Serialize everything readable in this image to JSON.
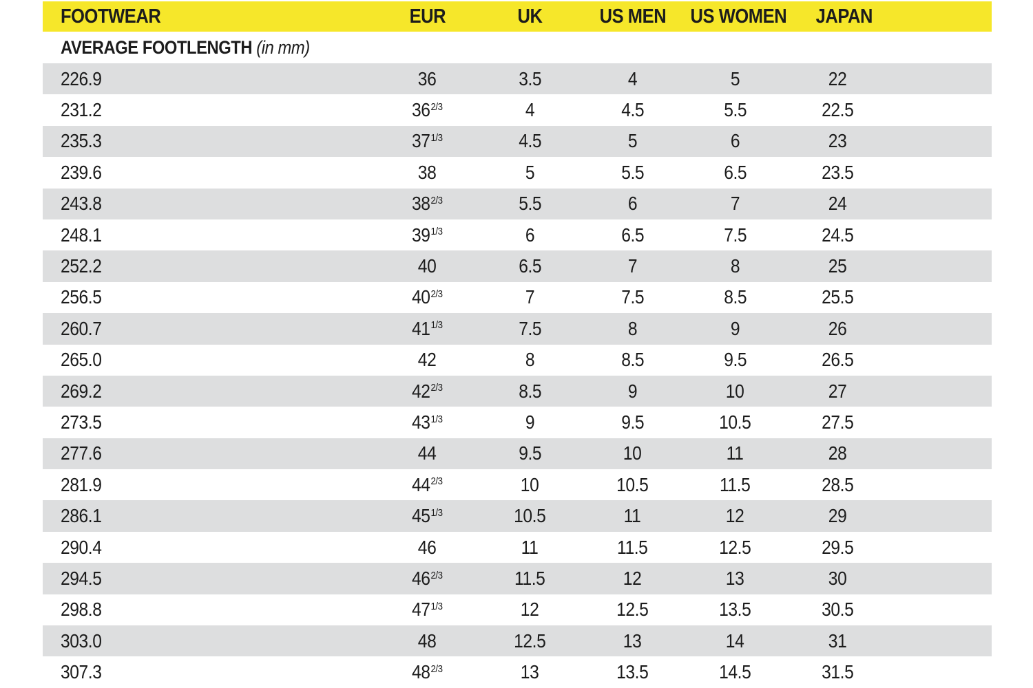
{
  "colors": {
    "header_bg": "#f6e72a",
    "row_alt_bg": "#dddedf",
    "row_bg": "#ffffff",
    "text": "#1c1c1c"
  },
  "chart_data": {
    "type": "table",
    "title": "FOOTWEAR",
    "columns": [
      "FOOTWEAR",
      "EUR",
      "UK",
      "US MEN",
      "US WOMEN",
      "JAPAN"
    ],
    "subheader": {
      "label": "AVERAGE FOOTLENGTH",
      "note": "(in mm)"
    },
    "rows": [
      {
        "footlength_mm": "226.9",
        "eur": "36",
        "eur_frac": "",
        "uk": "3.5",
        "us_men": "4",
        "us_women": "5",
        "japan": "22"
      },
      {
        "footlength_mm": "231.2",
        "eur": "36",
        "eur_frac": "2/3",
        "uk": "4",
        "us_men": "4.5",
        "us_women": "5.5",
        "japan": "22.5"
      },
      {
        "footlength_mm": "235.3",
        "eur": "37",
        "eur_frac": "1/3",
        "uk": "4.5",
        "us_men": "5",
        "us_women": "6",
        "japan": "23"
      },
      {
        "footlength_mm": "239.6",
        "eur": "38",
        "eur_frac": "",
        "uk": "5",
        "us_men": "5.5",
        "us_women": "6.5",
        "japan": "23.5"
      },
      {
        "footlength_mm": "243.8",
        "eur": "38",
        "eur_frac": "2/3",
        "uk": "5.5",
        "us_men": "6",
        "us_women": "7",
        "japan": "24"
      },
      {
        "footlength_mm": "248.1",
        "eur": "39",
        "eur_frac": "1/3",
        "uk": "6",
        "us_men": "6.5",
        "us_women": "7.5",
        "japan": "24.5"
      },
      {
        "footlength_mm": "252.2",
        "eur": "40",
        "eur_frac": "",
        "uk": "6.5",
        "us_men": "7",
        "us_women": "8",
        "japan": "25"
      },
      {
        "footlength_mm": "256.5",
        "eur": "40",
        "eur_frac": "2/3",
        "uk": "7",
        "us_men": "7.5",
        "us_women": "8.5",
        "japan": "25.5"
      },
      {
        "footlength_mm": "260.7",
        "eur": "41",
        "eur_frac": "1/3",
        "uk": "7.5",
        "us_men": "8",
        "us_women": "9",
        "japan": "26"
      },
      {
        "footlength_mm": "265.0",
        "eur": "42",
        "eur_frac": "",
        "uk": "8",
        "us_men": "8.5",
        "us_women": "9.5",
        "japan": "26.5"
      },
      {
        "footlength_mm": "269.2",
        "eur": "42",
        "eur_frac": "2/3",
        "uk": "8.5",
        "us_men": "9",
        "us_women": "10",
        "japan": "27"
      },
      {
        "footlength_mm": "273.5",
        "eur": "43",
        "eur_frac": "1/3",
        "uk": "9",
        "us_men": "9.5",
        "us_women": "10.5",
        "japan": "27.5"
      },
      {
        "footlength_mm": "277.6",
        "eur": "44",
        "eur_frac": "",
        "uk": "9.5",
        "us_men": "10",
        "us_women": "11",
        "japan": "28"
      },
      {
        "footlength_mm": "281.9",
        "eur": "44",
        "eur_frac": "2/3",
        "uk": "10",
        "us_men": "10.5",
        "us_women": "11.5",
        "japan": "28.5"
      },
      {
        "footlength_mm": "286.1",
        "eur": "45",
        "eur_frac": "1/3",
        "uk": "10.5",
        "us_men": "11",
        "us_women": "12",
        "japan": "29"
      },
      {
        "footlength_mm": "290.4",
        "eur": "46",
        "eur_frac": "",
        "uk": "11",
        "us_men": "11.5",
        "us_women": "12.5",
        "japan": "29.5"
      },
      {
        "footlength_mm": "294.5",
        "eur": "46",
        "eur_frac": "2/3",
        "uk": "11.5",
        "us_men": "12",
        "us_women": "13",
        "japan": "30"
      },
      {
        "footlength_mm": "298.8",
        "eur": "47",
        "eur_frac": "1/3",
        "uk": "12",
        "us_men": "12.5",
        "us_women": "13.5",
        "japan": "30.5"
      },
      {
        "footlength_mm": "303.0",
        "eur": "48",
        "eur_frac": "",
        "uk": "12.5",
        "us_men": "13",
        "us_women": "14",
        "japan": "31"
      },
      {
        "footlength_mm": "307.3",
        "eur": "48",
        "eur_frac": "2/3",
        "uk": "13",
        "us_men": "13.5",
        "us_women": "14.5",
        "japan": "31.5"
      }
    ]
  }
}
